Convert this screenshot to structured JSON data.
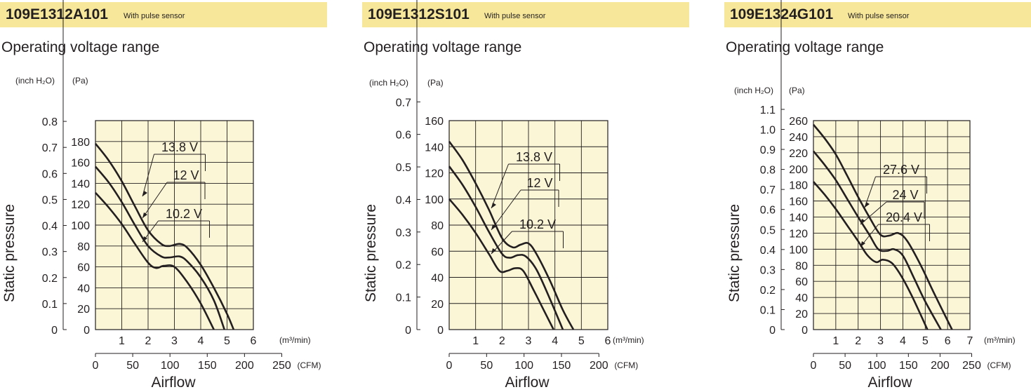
{
  "panels": [
    {
      "model": "109E1312A101",
      "note": "With pulse sensor",
      "heading": "Operating voltage range"
    },
    {
      "model": "109E1312S101",
      "note": "With pulse sensor",
      "heading": "Operating voltage range"
    },
    {
      "model": "109E1324G101",
      "note": "With pulse sensor",
      "heading": "Operating voltage range"
    }
  ],
  "chart_data": [
    {
      "type": "line",
      "ylabel": "Static pressure",
      "xlabel": "Airflow",
      "y_unit_left": "(inch H₂O)",
      "y_unit_right": "(Pa)",
      "x_unit_top": "(m³/min)",
      "x_unit_bottom": "(CFM)",
      "xlim": [
        0,
        6
      ],
      "ylim": [
        0,
        200
      ],
      "inh2o_ticks": [
        "0",
        "0.1",
        "0.2",
        "0.3",
        "0.4",
        "0.5",
        "0.6",
        "0.7",
        "0.8"
      ],
      "pa_ticks": [
        0,
        20,
        40,
        60,
        80,
        100,
        120,
        140,
        160,
        180
      ],
      "m3_ticks": [
        1,
        2,
        3,
        4,
        5,
        6
      ],
      "cfm_ticks": [
        0,
        50,
        100,
        150,
        200,
        250
      ],
      "grid": true,
      "background": "#fbf6d6",
      "series": [
        {
          "name": "13.8 V",
          "x": [
            0,
            0.5,
            1.0,
            1.5,
            2.0,
            2.5,
            2.8,
            3.2,
            3.5,
            4.0,
            4.5,
            5.0,
            5.25
          ],
          "y": [
            178,
            162,
            142,
            118,
            95,
            82,
            80,
            82,
            78,
            62,
            40,
            15,
            0
          ]
        },
        {
          "name": "12 V",
          "x": [
            0,
            0.5,
            1.0,
            1.5,
            2.0,
            2.5,
            2.8,
            3.2,
            3.5,
            4.0,
            4.5,
            4.9
          ],
          "y": [
            156,
            141,
            122,
            100,
            80,
            70,
            69,
            70,
            65,
            50,
            28,
            0
          ]
        },
        {
          "name": "10.2 V",
          "x": [
            0,
            0.5,
            1.0,
            1.5,
            2.0,
            2.3,
            2.6,
            3.0,
            3.5,
            4.0,
            4.5
          ],
          "y": [
            131,
            117,
            101,
            82,
            64,
            59,
            61,
            60,
            45,
            25,
            0
          ]
        }
      ],
      "labels": [
        "13.8 V",
        "12 V",
        "10.2 V"
      ]
    },
    {
      "type": "line",
      "ylabel": "Static pressure",
      "xlabel": "Airflow",
      "y_unit_left": "(inch H₂O)",
      "y_unit_right": "(Pa)",
      "x_unit_top": "(m³/min)",
      "x_unit_bottom": "(CFM)",
      "xlim": [
        0,
        6
      ],
      "ylim": [
        0,
        160
      ],
      "inh2o_ticks": [
        "0",
        "0.1",
        "0.2",
        "0.3",
        "0.4",
        "0.5",
        "0.6",
        "0.7"
      ],
      "pa_ticks": [
        0,
        20,
        40,
        60,
        80,
        100,
        120,
        140,
        160
      ],
      "m3_ticks": [
        1,
        2,
        3,
        4,
        5,
        6
      ],
      "cfm_ticks": [
        0,
        50,
        100,
        150,
        200
      ],
      "grid": true,
      "background": "#fbf6d6",
      "series": [
        {
          "name": "13.8 V",
          "x": [
            0,
            0.5,
            1.0,
            1.5,
            2.0,
            2.4,
            2.7,
            3.0,
            3.3,
            3.8,
            4.3,
            4.7
          ],
          "y": [
            144,
            130,
            112,
            92,
            70,
            63,
            65,
            66,
            58,
            38,
            15,
            0
          ]
        },
        {
          "name": "12 V",
          "x": [
            0,
            0.5,
            1.0,
            1.5,
            2.0,
            2.3,
            2.6,
            2.9,
            3.3,
            3.8,
            4.3
          ],
          "y": [
            125,
            111,
            94,
            75,
            58,
            55,
            57,
            56,
            46,
            24,
            0
          ]
        },
        {
          "name": "10.2 V",
          "x": [
            0,
            0.5,
            1.0,
            1.5,
            1.9,
            2.2,
            2.5,
            2.8,
            3.2,
            3.6,
            3.95
          ],
          "y": [
            100,
            88,
            74,
            58,
            45,
            45,
            47,
            45,
            30,
            14,
            0
          ]
        }
      ],
      "labels": [
        "13.8 V",
        "12 V",
        "10.2 V"
      ]
    },
    {
      "type": "line",
      "ylabel": "Static pressure",
      "xlabel": "Airflow",
      "y_unit_left": "(inch H₂O)",
      "y_unit_right": "(Pa)",
      "x_unit_top": "(m³/min)",
      "x_unit_bottom": "(CFM)",
      "xlim": [
        0,
        7
      ],
      "ylim": [
        0,
        260
      ],
      "inh2o_ticks": [
        "0",
        "0.1",
        "0.2",
        "0.3",
        "0.4",
        "0.5",
        "0.6",
        "0.7",
        "0.8",
        "0.9",
        "1.0",
        "1.1"
      ],
      "pa_ticks": [
        0,
        20,
        40,
        60,
        80,
        100,
        120,
        140,
        160,
        180,
        200,
        220,
        240,
        260
      ],
      "m3_ticks": [
        1,
        2,
        3,
        4,
        5,
        6,
        7
      ],
      "cfm_ticks": [
        0,
        50,
        100,
        150,
        200,
        250
      ],
      "grid": true,
      "background": "#fbf6d6",
      "series": [
        {
          "name": "27.6 V",
          "x": [
            0,
            0.5,
            1.0,
            1.5,
            2.0,
            2.5,
            3.0,
            3.4,
            3.8,
            4.2,
            4.8,
            5.4,
            6.2
          ],
          "y": [
            255,
            238,
            218,
            192,
            165,
            140,
            118,
            117,
            120,
            110,
            80,
            45,
            0
          ]
        },
        {
          "name": "24 V",
          "x": [
            0,
            0.5,
            1.0,
            1.5,
            2.0,
            2.5,
            2.9,
            3.3,
            3.6,
            4.0,
            4.5,
            5.0,
            5.7
          ],
          "y": [
            222,
            205,
            186,
            163,
            140,
            118,
            100,
            98,
            100,
            92,
            64,
            35,
            0
          ]
        },
        {
          "name": "20.4 V",
          "x": [
            0,
            0.5,
            1.0,
            1.5,
            2.0,
            2.4,
            2.8,
            3.1,
            3.5,
            3.9,
            4.4,
            5.1
          ],
          "y": [
            184,
            168,
            150,
            130,
            110,
            93,
            84,
            87,
            83,
            68,
            42,
            0
          ]
        }
      ],
      "labels": [
        "27.6 V",
        "24 V",
        "20.4 V"
      ]
    }
  ]
}
